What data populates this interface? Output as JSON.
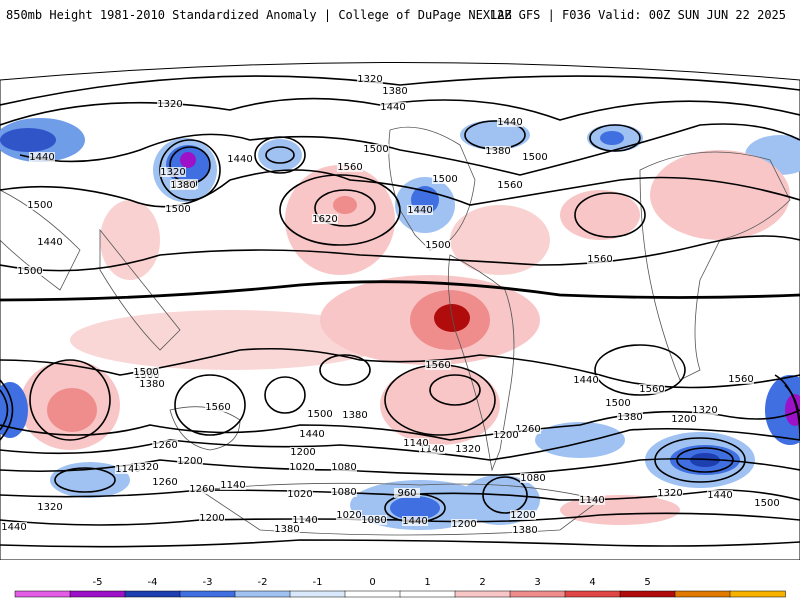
{
  "header": {
    "title": "850mb Height 1981-2010 Standardized Anomaly | College of DuPage NEXLAB",
    "run": "12Z GFS | F036 Valid: 00Z SUN JUN 22 2025"
  },
  "colorbar": {
    "ticks": [
      "-5",
      "-4",
      "-3",
      "-2",
      "-1",
      "0",
      "1",
      "2",
      "3",
      "4",
      "5"
    ],
    "colors": [
      "#e25ce6",
      "#9d11c9",
      "#1d3fb0",
      "#3f6fe0",
      "#9fc2f2",
      "#d9e8fb",
      "#ffffff",
      "#ffffff",
      "#f8c6c6",
      "#ef8d8d",
      "#e04646",
      "#b00c0c",
      "#e07a00",
      "#f7b200"
    ]
  },
  "contour_labels": [
    "1320",
    "1380",
    "1440",
    "1320",
    "1440",
    "1380",
    "1320",
    "1380",
    "1440",
    "1500",
    "1500",
    "1440",
    "1500",
    "1500",
    "1560",
    "1620",
    "1500",
    "1380",
    "1560",
    "1440",
    "1440",
    "1500",
    "1500",
    "1560",
    "1500",
    "1560",
    "1500",
    "1500",
    "1380",
    "1560",
    "1560",
    "1560",
    "1500",
    "1380",
    "1320",
    "1440",
    "1380",
    "1440",
    "1200",
    "1260",
    "1140",
    "1200",
    "1260",
    "1320",
    "1200",
    "1020",
    "1080",
    "1140",
    "1260",
    "1320",
    "1200",
    "1140",
    "1260",
    "1140",
    "1020",
    "1080",
    "960",
    "1080",
    "1140",
    "1200",
    "1320",
    "1440",
    "1500",
    "1440",
    "1380",
    "1200",
    "1140",
    "1020",
    "1080",
    "1200",
    "1380",
    "1440",
    "1320"
  ]
}
